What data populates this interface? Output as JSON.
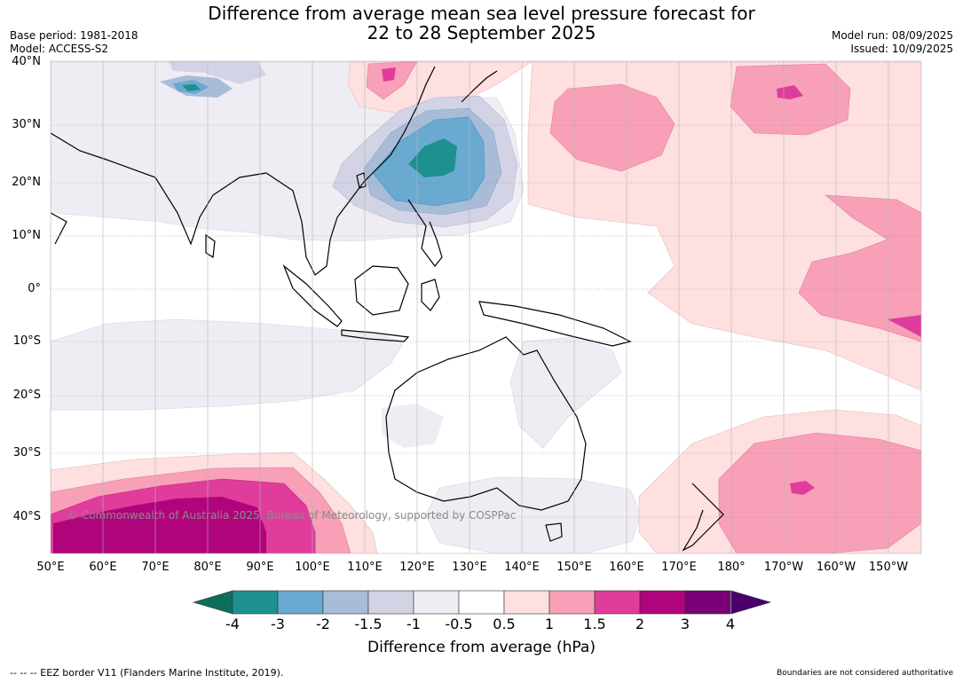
{
  "header": {
    "title_line1": "Difference from average mean sea level pressure forecast for",
    "title_line2": "22 to 28 September 2025",
    "base_period": "Base period: 1981-2018",
    "model": "Model: ACCESS-S2",
    "model_run": "Model run: 08/09/2025",
    "issued": "Issued: 10/09/2025"
  },
  "map": {
    "lat_labels": [
      "40°N",
      "30°N",
      "20°N",
      "10°N",
      "0°",
      "10°S",
      "20°S",
      "30°S",
      "40°S"
    ],
    "lon_labels": [
      "50°E",
      "60°E",
      "70°E",
      "80°E",
      "90°E",
      "100°E",
      "110°E",
      "120°E",
      "130°E",
      "140°E",
      "150°E",
      "160°E",
      "170°E",
      "180°",
      "170°W",
      "160°W",
      "150°W"
    ],
    "copyright": "© Commonwealth of Australia 2025, Bureau of Meteorology, supported by COSPPac"
  },
  "colorbar": {
    "ticks": [
      "-4",
      "-3",
      "-2",
      "-1.5",
      "-1",
      "-0.5",
      "0.5",
      "1",
      "1.5",
      "2",
      "3",
      "4"
    ],
    "colors": [
      "#0e6e5e",
      "#1e9090",
      "#6aaad0",
      "#a8bcd8",
      "#d3d3e6",
      "#f0ecf4",
      "#ffffff",
      "#fde0df",
      "#f7a0b8",
      "#e03c9c",
      "#b0047c",
      "#7a0078",
      "#4a006c"
    ],
    "label": "Difference from average (hPa)"
  },
  "footer": {
    "eez_note": "--  --  -- EEZ border V11 (Flanders Marine Institute, 2019).",
    "disclaimer": "Boundaries are not considered authoritative"
  }
}
